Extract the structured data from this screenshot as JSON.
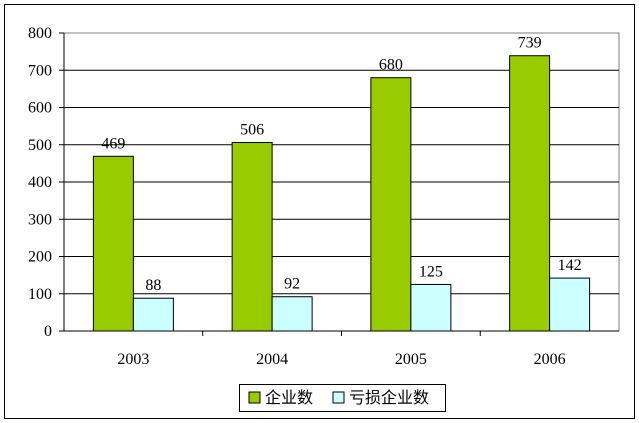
{
  "chart_data": {
    "type": "bar",
    "categories": [
      "2003",
      "2004",
      "2005",
      "2006"
    ],
    "series": [
      {
        "name": "企业数",
        "values": [
          469,
          506,
          680,
          739
        ],
        "color": "#99CC00"
      },
      {
        "name": "亏损企业数",
        "values": [
          88,
          92,
          125,
          142
        ],
        "color": "#CCFFFF"
      }
    ],
    "ylim": [
      0,
      800
    ],
    "yticks": [
      "0",
      "100",
      "200",
      "300",
      "400",
      "500",
      "600",
      "700",
      "800"
    ],
    "grid": true,
    "legend": "bottom",
    "title": "",
    "xlabel": "",
    "ylabel": ""
  }
}
